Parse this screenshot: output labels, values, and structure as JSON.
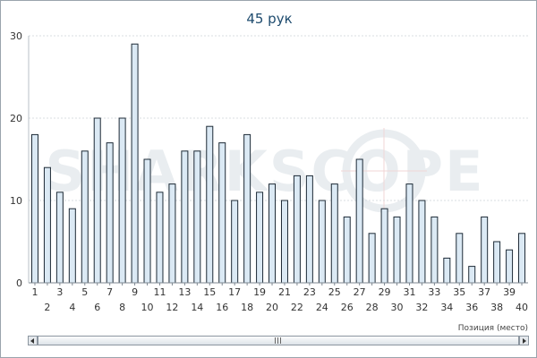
{
  "chart_data": {
    "type": "bar",
    "title": "45 рук",
    "xlabel": "Позиция (место)",
    "ylabel": "",
    "ylim": [
      0,
      30
    ],
    "yticks": [
      0,
      10,
      20,
      30
    ],
    "grid": true,
    "categories": [
      "1",
      "2",
      "3",
      "4",
      "5",
      "6",
      "7",
      "8",
      "9",
      "10",
      "11",
      "12",
      "13",
      "14",
      "15",
      "16",
      "17",
      "18",
      "19",
      "20",
      "21",
      "22",
      "23",
      "24",
      "25",
      "26",
      "27",
      "28",
      "29",
      "30",
      "31",
      "32",
      "33",
      "34",
      "35",
      "36",
      "37",
      "38",
      "39",
      "40"
    ],
    "values": [
      18,
      14,
      11,
      9,
      16,
      20,
      17,
      20,
      29,
      15,
      11,
      12,
      16,
      16,
      19,
      17,
      10,
      18,
      11,
      12,
      10,
      13,
      13,
      10,
      12,
      8,
      15,
      6,
      9,
      8,
      12,
      10,
      8,
      3,
      6,
      2,
      8,
      5,
      4,
      6
    ],
    "bar_fill": "#dbe9f4",
    "bar_stroke": "#1d2a36",
    "grid_color": "#d8dde2",
    "title_color": "#1e4b6e"
  },
  "watermark": {
    "text": "SHARKSCOPE",
    "color": "#e9edf0"
  }
}
